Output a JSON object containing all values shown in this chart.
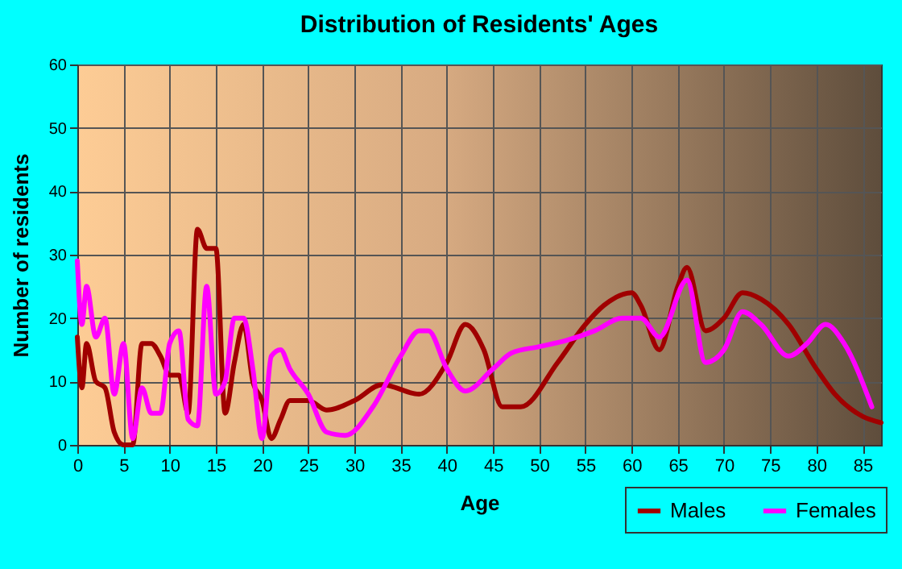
{
  "chart_data": {
    "type": "line",
    "title": "Distribution of Residents' Ages",
    "xlabel": "Age",
    "ylabel": "Number of residents",
    "xlim": [
      0,
      87
    ],
    "xticks": [
      0,
      5,
      10,
      15,
      20,
      25,
      30,
      35,
      40,
      45,
      50,
      55,
      60,
      65,
      70,
      75,
      80,
      85
    ],
    "ylim": [
      0,
      60
    ],
    "yticks": [
      0,
      10,
      20,
      30,
      40,
      50,
      60
    ],
    "grid": true,
    "legend": "bottom right",
    "series": [
      {
        "name": "Males",
        "color": "#a00000",
        "x": [
          0,
          0.5,
          1,
          2,
          3,
          4,
          5,
          6,
          7,
          8,
          9,
          10,
          11,
          12,
          13,
          14,
          15,
          16,
          17,
          18,
          19,
          20,
          21,
          22,
          23,
          25,
          27,
          30,
          33,
          37,
          40,
          42,
          44,
          46,
          48,
          52,
          55,
          57,
          60,
          61,
          63,
          65,
          66,
          68,
          70,
          72,
          74,
          77,
          80,
          82,
          85,
          87
        ],
        "values": [
          17,
          9,
          16,
          10,
          9,
          2,
          0,
          0,
          16,
          16,
          14,
          11,
          11,
          5,
          34,
          31,
          31,
          5,
          13,
          19,
          10,
          7,
          1,
          4,
          7,
          7,
          5.5,
          7,
          9.5,
          8,
          13,
          19,
          15,
          6,
          6,
          13,
          19,
          22,
          24,
          22,
          15,
          25,
          28,
          18,
          20,
          24,
          23,
          19,
          12,
          8,
          4.5,
          3.5
        ]
      },
      {
        "name": "Females",
        "color": "#ff00ff",
        "x": [
          0,
          0.5,
          1,
          2,
          3,
          4,
          5,
          6,
          7,
          8,
          9,
          10,
          11,
          12,
          13,
          14,
          15,
          16,
          17,
          18,
          19,
          20,
          21,
          22,
          23,
          25,
          27,
          29,
          32,
          35,
          37,
          38,
          40,
          42,
          45,
          47,
          50,
          53,
          56,
          59,
          61,
          63,
          66,
          68,
          70,
          72,
          74,
          77,
          79,
          81,
          83,
          86
        ],
        "values": [
          29,
          19,
          25,
          17,
          20,
          8,
          16,
          1,
          9,
          5,
          5,
          16,
          18,
          4,
          3,
          25,
          8,
          10,
          20,
          20,
          12,
          1,
          14,
          15,
          12,
          8,
          2,
          1.5,
          6,
          14,
          18,
          18,
          12,
          8.5,
          12,
          14.5,
          15.5,
          16.5,
          18,
          20,
          20,
          17,
          26,
          13,
          15,
          21,
          19,
          14,
          16,
          19,
          16,
          6
        ]
      }
    ]
  }
}
